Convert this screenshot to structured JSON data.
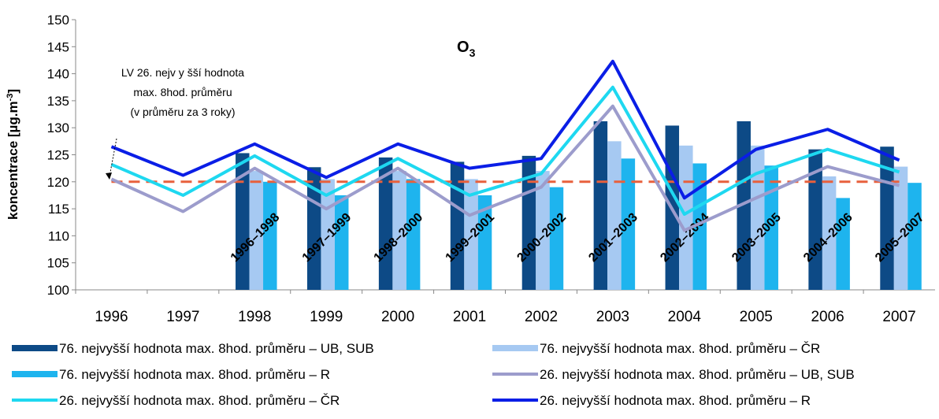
{
  "chart_data": {
    "type": "bar_line",
    "title": "O",
    "title_sub": "3",
    "ylabel": [
      "koncentrace [µg.m",
      "-3",
      "]"
    ],
    "annotation": [
      "LV 26. nejv y šší hodnota",
      "max. 8hod. průměru",
      "(v průměru za 3 roky)"
    ],
    "limit": 120,
    "limit_color": "#e8603c",
    "categories": [
      "1996",
      "1997",
      "1998",
      "1999",
      "2000",
      "2001",
      "2002",
      "2003",
      "2004",
      "2005",
      "2006",
      "2007"
    ],
    "period_labels": [
      null,
      null,
      "1996–1998",
      "1997–1999",
      "1998–2000",
      "1999–2001",
      "2000–2002",
      "2001–2003",
      "2002–2004",
      "2003–2005",
      "2004–2006",
      "2005–2007"
    ],
    "ylim": [
      100,
      150
    ],
    "yticks": [
      100,
      105,
      110,
      115,
      120,
      125,
      130,
      135,
      140,
      145,
      150
    ],
    "series": [
      {
        "name": "76. nejvyšší hodnota max. 8hod. průměru – UB, SUB",
        "kind": "bar",
        "color": "#0d4a86",
        "values": [
          null,
          null,
          125.3,
          122.7,
          124.5,
          123.7,
          124.8,
          131.2,
          130.4,
          131.2,
          126,
          126.5
        ]
      },
      {
        "name": "76. nejvyšší hodnota max. 8hod. průměru – ČR",
        "kind": "bar",
        "color": "#a6c9f2",
        "values": [
          null,
          null,
          122,
          120.5,
          122,
          120.5,
          122,
          127.5,
          126.7,
          126.7,
          121,
          122.8
        ]
      },
      {
        "name": "76. nejvyšší hodnota max. 8hod. průměru – R",
        "kind": "bar",
        "color": "#1eb4ee",
        "values": [
          null,
          null,
          120,
          117.5,
          120.5,
          117.5,
          119,
          124.3,
          123.4,
          123,
          117,
          119.8
        ]
      },
      {
        "name": "26. nejvyšší hodnota max. 8hod. průměru – UB, SUB",
        "kind": "line",
        "color": "#9c9ccc",
        "values": [
          120.5,
          114.5,
          122.5,
          115,
          122.5,
          113.8,
          119,
          134,
          111,
          117,
          122.8,
          119.3
        ]
      },
      {
        "name": "26. nejvyšší hodnota max. 8hod. průměru – ČR",
        "kind": "line",
        "color": "#1ed8f0",
        "values": [
          123.2,
          117.5,
          124.8,
          117.5,
          124.3,
          117.5,
          121.5,
          137.5,
          114,
          121.5,
          126,
          121.8
        ]
      },
      {
        "name": "26. nejvyšší hodnota max. 8hod. průměru – R",
        "kind": "line",
        "color": "#0a1ee6",
        "values": [
          126.5,
          121.2,
          127,
          120.8,
          127,
          122.5,
          124.3,
          142.3,
          117,
          126,
          129.7,
          124
        ]
      }
    ]
  }
}
